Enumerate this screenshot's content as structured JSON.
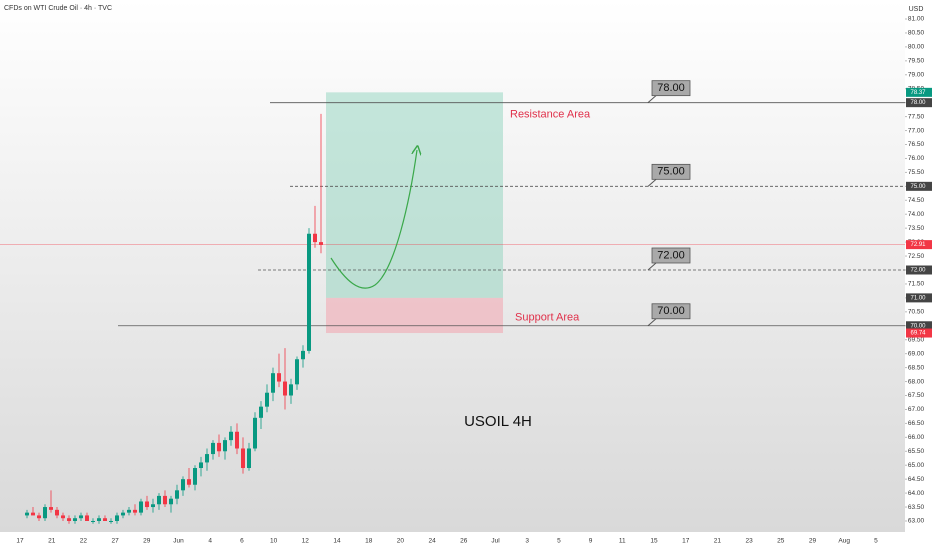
{
  "chart_data": {
    "type": "candlestick",
    "title": "CFDs on WTI Crude Oil · 4h · TVC",
    "currency": "USD",
    "annotation": "USOIL 4H",
    "up_color": "#089981",
    "down_color": "#f23645",
    "grid": false,
    "ylim": [
      63,
      81
    ],
    "yticks": [
      {
        "value": 63,
        "label": "63.00"
      },
      {
        "value": 63.5,
        "label": "63.50"
      },
      {
        "value": 64,
        "label": "64.00"
      },
      {
        "value": 64.5,
        "label": "64.50"
      },
      {
        "value": 65,
        "label": "65.00"
      },
      {
        "value": 65.5,
        "label": "65.50"
      },
      {
        "value": 66,
        "label": "66.00"
      },
      {
        "value": 66.5,
        "label": "66.50"
      },
      {
        "value": 67,
        "label": "67.00"
      },
      {
        "value": 67.5,
        "label": "67.50"
      },
      {
        "value": 68,
        "label": "68.00"
      },
      {
        "value": 68.5,
        "label": "68.50"
      },
      {
        "value": 69,
        "label": "69.00"
      },
      {
        "value": 69.5,
        "label": "69.50"
      },
      {
        "value": 70,
        "label": "70.00"
      },
      {
        "value": 70.5,
        "label": "70.50"
      },
      {
        "value": 71,
        "label": "71.00"
      },
      {
        "value": 71.5,
        "label": "71.50"
      },
      {
        "value": 72,
        "label": "72.00"
      },
      {
        "value": 72.5,
        "label": "72.50"
      },
      {
        "value": 73,
        "label": "73.00"
      },
      {
        "value": 73.5,
        "label": "73.50"
      },
      {
        "value": 74,
        "label": "74.00"
      },
      {
        "value": 74.5,
        "label": "74.50"
      },
      {
        "value": 75,
        "label": "75.00"
      },
      {
        "value": 75.5,
        "label": "75.50"
      },
      {
        "value": 76,
        "label": "76.00"
      },
      {
        "value": 76.5,
        "label": "76.50"
      },
      {
        "value": 77,
        "label": "77.00"
      },
      {
        "value": 77.5,
        "label": "77.50"
      },
      {
        "value": 78,
        "label": "78.00"
      },
      {
        "value": 78.5,
        "label": "78.50"
      },
      {
        "value": 79,
        "label": "79.00"
      },
      {
        "value": 79.5,
        "label": "79.50"
      },
      {
        "value": 80,
        "label": "80.00"
      },
      {
        "value": 80.5,
        "label": "80.50"
      },
      {
        "value": 81,
        "label": "81.00"
      }
    ],
    "x_labels": [
      "17",
      "21",
      "22",
      "27",
      "29",
      "Jun",
      "4",
      "6",
      "10",
      "12",
      "14",
      "18",
      "20",
      "24",
      "26",
      "Jul",
      "3",
      "5",
      "9",
      "11",
      "15",
      "17",
      "21",
      "23",
      "25",
      "29",
      "Aug",
      "5"
    ],
    "candles": [
      {
        "open": 63.2,
        "high": 63.4,
        "low": 63.1,
        "close": 63.3
      },
      {
        "open": 63.3,
        "high": 63.5,
        "low": 63.2,
        "close": 63.2
      },
      {
        "open": 63.2,
        "high": 63.3,
        "low": 63.0,
        "close": 63.1
      },
      {
        "open": 63.1,
        "high": 63.6,
        "low": 63.0,
        "close": 63.5
      },
      {
        "open": 63.5,
        "high": 64.1,
        "low": 63.3,
        "close": 63.4
      },
      {
        "open": 63.4,
        "high": 63.5,
        "low": 63.1,
        "close": 63.2
      },
      {
        "open": 63.2,
        "high": 63.3,
        "low": 63.0,
        "close": 63.1
      },
      {
        "open": 63.1,
        "high": 63.2,
        "low": 62.9,
        "close": 63.0
      },
      {
        "open": 63.0,
        "high": 63.2,
        "low": 62.9,
        "close": 63.1
      },
      {
        "open": 63.1,
        "high": 63.3,
        "low": 63.0,
        "close": 63.2
      },
      {
        "open": 63.2,
        "high": 63.3,
        "low": 63.0,
        "close": 63.0
      },
      {
        "open": 63.0,
        "high": 63.1,
        "low": 62.9,
        "close": 63.0
      },
      {
        "open": 63.0,
        "high": 63.2,
        "low": 62.9,
        "close": 63.1
      },
      {
        "open": 63.1,
        "high": 63.2,
        "low": 63.0,
        "close": 63.0
      },
      {
        "open": 63.0,
        "high": 63.1,
        "low": 62.9,
        "close": 63.0
      },
      {
        "open": 63.0,
        "high": 63.3,
        "low": 62.9,
        "close": 63.2
      },
      {
        "open": 63.2,
        "high": 63.4,
        "low": 63.1,
        "close": 63.3
      },
      {
        "open": 63.3,
        "high": 63.5,
        "low": 63.2,
        "close": 63.4
      },
      {
        "open": 63.4,
        "high": 63.6,
        "low": 63.2,
        "close": 63.3
      },
      {
        "open": 63.3,
        "high": 63.8,
        "low": 63.2,
        "close": 63.7
      },
      {
        "open": 63.7,
        "high": 63.9,
        "low": 63.4,
        "close": 63.5
      },
      {
        "open": 63.5,
        "high": 63.8,
        "low": 63.3,
        "close": 63.6
      },
      {
        "open": 63.6,
        "high": 64.0,
        "low": 63.4,
        "close": 63.9
      },
      {
        "open": 63.9,
        "high": 64.1,
        "low": 63.5,
        "close": 63.6
      },
      {
        "open": 63.6,
        "high": 63.9,
        "low": 63.3,
        "close": 63.8
      },
      {
        "open": 63.8,
        "high": 64.3,
        "low": 63.6,
        "close": 64.1
      },
      {
        "open": 64.1,
        "high": 64.6,
        "low": 63.9,
        "close": 64.5
      },
      {
        "open": 64.5,
        "high": 64.9,
        "low": 64.2,
        "close": 64.3
      },
      {
        "open": 64.3,
        "high": 65.0,
        "low": 64.1,
        "close": 64.9
      },
      {
        "open": 64.9,
        "high": 65.3,
        "low": 64.6,
        "close": 65.1
      },
      {
        "open": 65.1,
        "high": 65.6,
        "low": 64.8,
        "close": 65.4
      },
      {
        "open": 65.4,
        "high": 65.9,
        "low": 65.2,
        "close": 65.8
      },
      {
        "open": 65.8,
        "high": 66.1,
        "low": 65.3,
        "close": 65.5
      },
      {
        "open": 65.5,
        "high": 66.0,
        "low": 65.2,
        "close": 65.9
      },
      {
        "open": 65.9,
        "high": 66.4,
        "low": 65.7,
        "close": 66.2
      },
      {
        "open": 66.2,
        "high": 66.5,
        "low": 65.4,
        "close": 65.6
      },
      {
        "open": 65.6,
        "high": 66.0,
        "low": 64.7,
        "close": 64.9
      },
      {
        "open": 64.9,
        "high": 65.8,
        "low": 64.8,
        "close": 65.6
      },
      {
        "open": 65.6,
        "high": 66.9,
        "low": 65.5,
        "close": 66.7
      },
      {
        "open": 66.7,
        "high": 67.3,
        "low": 66.3,
        "close": 67.1
      },
      {
        "open": 67.1,
        "high": 67.9,
        "low": 66.9,
        "close": 67.6
      },
      {
        "open": 67.6,
        "high": 68.5,
        "low": 67.3,
        "close": 68.3
      },
      {
        "open": 68.3,
        "high": 69.0,
        "low": 67.8,
        "close": 68.0
      },
      {
        "open": 68.0,
        "high": 69.2,
        "low": 67.0,
        "close": 67.5
      },
      {
        "open": 67.5,
        "high": 68.1,
        "low": 67.2,
        "close": 67.9
      },
      {
        "open": 67.9,
        "high": 68.9,
        "low": 67.7,
        "close": 68.8
      },
      {
        "open": 68.8,
        "high": 69.3,
        "low": 68.5,
        "close": 69.1
      },
      {
        "open": 69.1,
        "high": 73.5,
        "low": 69.0,
        "close": 73.3
      },
      {
        "open": 73.3,
        "high": 74.3,
        "low": 72.8,
        "close": 73.0
      },
      {
        "open": 73.0,
        "high": 77.6,
        "low": 72.6,
        "close": 72.9
      }
    ],
    "levels": [
      {
        "value": 78,
        "label": "78.00",
        "style": "solid"
      },
      {
        "value": 75,
        "label": "75.00",
        "style": "dashed"
      },
      {
        "value": 72,
        "label": "72.00",
        "style": "dashed"
      },
      {
        "value": 70,
        "label": "70.00",
        "style": "solid"
      }
    ],
    "boxes": [
      {
        "top": 78.37,
        "top_label": "78.37",
        "bottom": 71,
        "bottom_label": "71.00",
        "label": "Resistance Area",
        "color": "#8fd3bd"
      },
      {
        "bottom": 69.74,
        "bottom_label": "69.74",
        "label": "Support Area",
        "color": "#f2aab4"
      }
    ],
    "last_price": {
      "value": 72.91,
      "label": "72.91"
    }
  }
}
